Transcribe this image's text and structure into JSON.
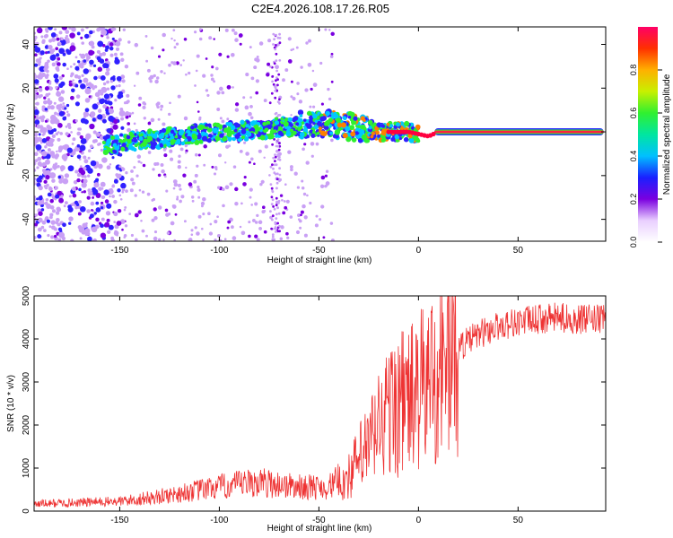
{
  "title": "C2E4.2026.108.17.26.R05",
  "chart_data": [
    {
      "type": "heatmap",
      "xlabel": "Height of straight line (km)",
      "ylabel": "Frequency (Hz)",
      "xlim": [
        -193,
        94
      ],
      "ylim": [
        -50,
        48
      ],
      "xticks": [
        -150,
        -100,
        -50,
        0,
        50
      ],
      "yticks": [
        -40,
        -20,
        0,
        20,
        40
      ],
      "ridge": {
        "description": "doppler trace ridge (center frequency vs height)",
        "x": [
          -155,
          -140,
          -120,
          -100,
          -80,
          -60,
          -48,
          -40,
          -30,
          -20,
          -15,
          -5,
          0,
          5,
          10,
          50,
          94
        ],
        "y": [
          -6,
          -4,
          -2,
          0,
          1,
          3,
          4,
          3,
          2,
          0,
          0,
          0,
          -1,
          -2,
          0,
          0,
          0
        ]
      },
      "colorbar": {
        "label": "Normalized spectral amplitude",
        "range": [
          0,
          1
        ],
        "ticks": [
          "0.0",
          "0.2",
          "0.4",
          "0.6",
          "0.8"
        ]
      }
    },
    {
      "type": "line",
      "xlabel": "Height of straight line (km)",
      "ylabel": "SNR (10 * v/v)",
      "xlim": [
        -193,
        94
      ],
      "ylim": [
        0,
        5000
      ],
      "xticks": [
        -150,
        -100,
        -50,
        0,
        50
      ],
      "yticks": [
        0,
        1000,
        2000,
        3000,
        4000,
        5000
      ],
      "color": "#ee3333",
      "envelope": {
        "x": [
          -193,
          -170,
          -150,
          -130,
          -100,
          -80,
          -60,
          -45,
          -35,
          -30,
          -25,
          -20,
          -15,
          -10,
          -5,
          0,
          5,
          10,
          15,
          20,
          30,
          40,
          50,
          60,
          70,
          80,
          94
        ],
        "y": [
          150,
          180,
          200,
          300,
          500,
          600,
          500,
          500,
          800,
          1200,
          1500,
          2000,
          2300,
          2500,
          2600,
          2700,
          3000,
          3300,
          3600,
          3800,
          4100,
          4300,
          4400,
          4450,
          4500,
          4450,
          4450
        ]
      }
    }
  ]
}
